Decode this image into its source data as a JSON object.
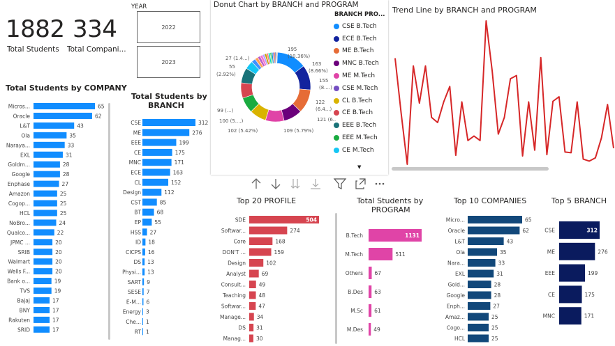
{
  "kpi": {
    "students_value": "1882",
    "students_label": "Total Students",
    "companies_value": "334",
    "companies_label": "Total Compani..."
  },
  "year_slicer": {
    "label": "YEAR",
    "options": [
      "2022",
      "2023"
    ]
  },
  "company_chart": {
    "title": "Total Students by COMPANY",
    "color": "#118DFF",
    "rows": [
      {
        "label": "Micros...",
        "value": 65
      },
      {
        "label": "Oracle",
        "value": 62
      },
      {
        "label": "L&T",
        "value": 43
      },
      {
        "label": "Ola",
        "value": 35
      },
      {
        "label": "Naraya...",
        "value": 33
      },
      {
        "label": "EXL",
        "value": 31
      },
      {
        "label": "Goldm...",
        "value": 28
      },
      {
        "label": "Google",
        "value": 28
      },
      {
        "label": "Enphase",
        "value": 27
      },
      {
        "label": "Amazon",
        "value": 25
      },
      {
        "label": "Cogop...",
        "value": 25
      },
      {
        "label": "HCL",
        "value": 25
      },
      {
        "label": "NoBro...",
        "value": 24
      },
      {
        "label": "Qualco...",
        "value": 22
      },
      {
        "label": "JPMC ...",
        "value": 20
      },
      {
        "label": "SRIB",
        "value": 20
      },
      {
        "label": "Walmart",
        "value": 20
      },
      {
        "label": "Wells F...",
        "value": 20
      },
      {
        "label": "Bank o...",
        "value": 19
      },
      {
        "label": "TVS",
        "value": 19
      },
      {
        "label": "Bajaj",
        "value": 17
      },
      {
        "label": "BNY",
        "value": 17
      },
      {
        "label": "Rakuten",
        "value": 17
      },
      {
        "label": "SRID",
        "value": 17
      }
    ]
  },
  "branch_chart": {
    "title_line1": "Total Students by",
    "title_line2": "BRANCH",
    "color": "#118DFF",
    "rows": [
      {
        "label": "CSE",
        "value": 312
      },
      {
        "label": "ME",
        "value": 276
      },
      {
        "label": "EEE",
        "value": 199
      },
      {
        "label": "CE",
        "value": 175
      },
      {
        "label": "MNC",
        "value": 171
      },
      {
        "label": "ECE",
        "value": 163
      },
      {
        "label": "CL",
        "value": 152
      },
      {
        "label": "Design",
        "value": 112
      },
      {
        "label": "CST",
        "value": 85
      },
      {
        "label": "BT",
        "value": 68
      },
      {
        "label": "EP",
        "value": 55
      },
      {
        "label": "HSS",
        "value": 27
      },
      {
        "label": "ID",
        "value": 18
      },
      {
        "label": "CICPS",
        "value": 16
      },
      {
        "label": "DS",
        "value": 13
      },
      {
        "label": "Physi...",
        "value": 13
      },
      {
        "label": "SART",
        "value": 9
      },
      {
        "label": "SESE",
        "value": 7
      },
      {
        "label": "E-M...",
        "value": 6
      },
      {
        "label": "Energy",
        "value": 3
      },
      {
        "label": "Che...",
        "value": 1
      },
      {
        "label": "RT",
        "value": 1
      }
    ]
  },
  "donut": {
    "title": "Donut Chart by BRANCH and PROGRAM",
    "legend_title": "BRANCH PRO...",
    "legend": [
      {
        "label": "CSE B.Tech",
        "color": "#118DFF"
      },
      {
        "label": "ECE B.Tech",
        "color": "#12239E"
      },
      {
        "label": "ME B.Tech",
        "color": "#E66C37"
      },
      {
        "label": "MNC B.Tech",
        "color": "#6B007B"
      },
      {
        "label": "ME M.Tech",
        "color": "#E044A7"
      },
      {
        "label": "CSE M.Tech",
        "color": "#744EC2"
      },
      {
        "label": "CL B.Tech",
        "color": "#D9B300"
      },
      {
        "label": "CE B.Tech",
        "color": "#D64550"
      },
      {
        "label": "EEE B.Tech",
        "color": "#197278"
      },
      {
        "label": "EEE M.Tech",
        "color": "#1AAB40"
      },
      {
        "label": "CE M.Tech",
        "color": "#15C6F4"
      }
    ],
    "slices": [
      {
        "value": 195,
        "color": "#118DFF"
      },
      {
        "value": 163,
        "color": "#12239E"
      },
      {
        "value": 155,
        "color": "#E66C37"
      },
      {
        "value": 122,
        "color": "#6B007B"
      },
      {
        "value": 121,
        "color": "#E044A7"
      },
      {
        "value": 109,
        "color": "#D9B300"
      },
      {
        "value": 102,
        "color": "#1AAB40"
      },
      {
        "value": 100,
        "color": "#D64550"
      },
      {
        "value": 99,
        "color": "#197278"
      },
      {
        "value": 55,
        "color": "#15C6F4"
      },
      {
        "value": 27,
        "color": "#4092FF"
      },
      {
        "value": 20,
        "color": "#FFA058"
      },
      {
        "value": 18,
        "color": "#BE5DC9"
      },
      {
        "value": 16,
        "color": "#F472D0"
      },
      {
        "value": 14,
        "color": "#B5A1FF"
      },
      {
        "value": 13,
        "color": "#C4A200"
      },
      {
        "value": 12,
        "color": "#FF8080"
      },
      {
        "value": 11,
        "color": "#00DBBC"
      },
      {
        "value": 10,
        "color": "#5BD667"
      },
      {
        "value": 9,
        "color": "#0091D5"
      },
      {
        "value": 8,
        "color": "#744EC2"
      },
      {
        "value": 7,
        "color": "#E66C37"
      },
      {
        "value": 6,
        "color": "#12239E"
      },
      {
        "value": 5,
        "color": "#D9B300"
      },
      {
        "value": 4,
        "color": "#6B007B"
      }
    ],
    "labels": {
      "l195": "195",
      "l195p": "(10.36%)",
      "l163": "163",
      "l163p": "(8.66%)",
      "l155": "155",
      "l155p": "(8....)",
      "l122": "122",
      "l122p": "(6.4...)",
      "l121": "121 (6...)",
      "l109": "109 (5.79%)",
      "l102": "102 (5.42%)",
      "l100": "100 (5....)",
      "l99": "99 (...)",
      "l55": "55",
      "l55p": "(2.92%)",
      "l27": "27 (1.4...)"
    }
  },
  "trend": {
    "title": "Trend Line by BRANCH and PROGRAM",
    "color": "#D62728",
    "values": [
      170,
      84,
      5,
      158,
      100,
      158,
      78,
      70,
      102,
      126,
      19,
      102,
      42,
      49,
      42,
      228,
      150,
      52,
      78,
      138,
      143,
      18,
      102,
      27,
      171,
      20,
      103,
      110,
      24,
      23,
      102,
      13,
      10,
      15,
      46,
      98,
      30
    ]
  },
  "toolbar": {
    "icons": [
      "arrow-up-icon",
      "arrow-down-icon",
      "double-arrow-down-icon",
      "expand-down-icon",
      "filter-icon",
      "focus-mode-icon",
      "more-options-icon"
    ]
  },
  "profile_chart": {
    "title": "Top 20 PROFILE",
    "color": "#D64550",
    "rows": [
      {
        "label": "SDE",
        "value": 504
      },
      {
        "label": "Softwar...",
        "value": 274
      },
      {
        "label": "Core",
        "value": 168
      },
      {
        "label": "DON'T ...",
        "value": 159
      },
      {
        "label": "Design",
        "value": 102
      },
      {
        "label": "Analyst",
        "value": 69
      },
      {
        "label": "Consult...",
        "value": 49
      },
      {
        "label": "Teaching",
        "value": 48
      },
      {
        "label": "Softwar...",
        "value": 47
      },
      {
        "label": "Manage...",
        "value": 34
      },
      {
        "label": "DS",
        "value": 31
      },
      {
        "label": "Manag...",
        "value": 30
      }
    ]
  },
  "program_chart": {
    "title_line1": "Total Students by",
    "title_line2": "PROGRAM",
    "color": "#E044A7",
    "rows": [
      {
        "label": "B.Tech",
        "value": 1131
      },
      {
        "label": "M.Tech",
        "value": 511
      },
      {
        "label": "Others",
        "value": 67
      },
      {
        "label": "B.Des",
        "value": 63
      },
      {
        "label": "M.Sc",
        "value": 61
      },
      {
        "label": "M.Des",
        "value": 49
      }
    ]
  },
  "top10_chart": {
    "title": "Top 10 COMPANIES",
    "color": "#12487A",
    "rows": [
      {
        "label": "Micro...",
        "value": 65
      },
      {
        "label": "Oracle",
        "value": 62
      },
      {
        "label": "L&T",
        "value": 43
      },
      {
        "label": "Ola",
        "value": 35
      },
      {
        "label": "Nara...",
        "value": 33
      },
      {
        "label": "EXL",
        "value": 31
      },
      {
        "label": "Gold...",
        "value": 28
      },
      {
        "label": "Google",
        "value": 28
      },
      {
        "label": "Enph...",
        "value": 27
      },
      {
        "label": "Amaz...",
        "value": 25
      },
      {
        "label": "Cogo...",
        "value": 25
      },
      {
        "label": "HCL",
        "value": 25
      }
    ]
  },
  "top5_chart": {
    "title": "Top 5 BRANCH",
    "color": "#0A1B5E",
    "rows": [
      {
        "label": "CSE",
        "value": 312
      },
      {
        "label": "ME",
        "value": 276
      },
      {
        "label": "EEE",
        "value": 199
      },
      {
        "label": "CE",
        "value": 175
      },
      {
        "label": "MNC",
        "value": 171
      }
    ]
  }
}
